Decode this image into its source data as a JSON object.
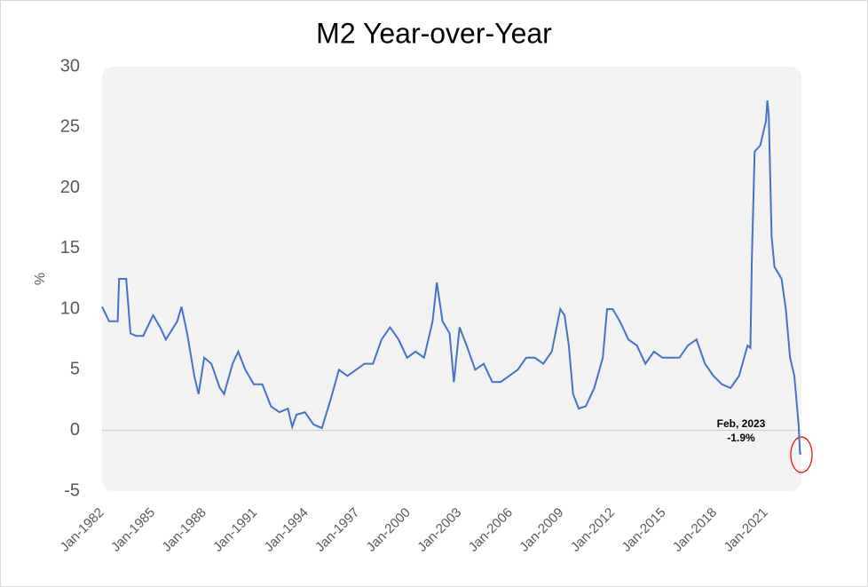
{
  "chart_data": {
    "type": "line",
    "title": "M2 Year-over-Year",
    "y_label": "%",
    "annotations": [
      "Feb, 2023",
      "-1.9%"
    ],
    "x": [
      "1982-01",
      "1982-06",
      "1982-12",
      "1983-01",
      "1983-06",
      "1983-09",
      "1984-01",
      "1984-06",
      "1985-01",
      "1985-06",
      "1985-10",
      "1986-06",
      "1986-09",
      "1987-01",
      "1987-06",
      "1987-09",
      "1988-01",
      "1988-06",
      "1988-12",
      "1989-03",
      "1989-09",
      "1990-01",
      "1990-06",
      "1990-12",
      "1991-06",
      "1991-12",
      "1992-06",
      "1992-12",
      "1993-03",
      "1993-06",
      "1993-12",
      "1994-06",
      "1994-12",
      "1995-06",
      "1995-12",
      "1996-06",
      "1996-12",
      "1997-06",
      "1997-12",
      "1998-06",
      "1998-12",
      "1999-06",
      "1999-12",
      "2000-06",
      "2000-12",
      "2001-06",
      "2001-09",
      "2002-01",
      "2002-06",
      "2002-09",
      "2003-01",
      "2003-06",
      "2003-12",
      "2004-06",
      "2004-12",
      "2005-06",
      "2005-12",
      "2006-06",
      "2006-12",
      "2007-06",
      "2007-12",
      "2008-06",
      "2008-12",
      "2009-03",
      "2009-06",
      "2009-09",
      "2010-01",
      "2010-06",
      "2010-12",
      "2011-06",
      "2011-09",
      "2012-01",
      "2012-06",
      "2012-12",
      "2013-06",
      "2013-12",
      "2014-06",
      "2014-12",
      "2015-06",
      "2015-12",
      "2016-06",
      "2016-12",
      "2017-06",
      "2017-12",
      "2018-06",
      "2018-12",
      "2019-06",
      "2019-12",
      "2020-02",
      "2020-03",
      "2020-05",
      "2020-09",
      "2021-01",
      "2021-02",
      "2021-03",
      "2021-05",
      "2021-07",
      "2021-12",
      "2022-03",
      "2022-06",
      "2022-09",
      "2022-12",
      "2023-01",
      "2023-02"
    ],
    "series": [
      {
        "name": "M2",
        "color": "#4472c4",
        "values": [
          10.2,
          9,
          9,
          12.5,
          12.5,
          8,
          7.8,
          7.8,
          9.5,
          8.5,
          7.5,
          9,
          10.2,
          8,
          4.5,
          3,
          6,
          5.5,
          3.5,
          3,
          5.5,
          6.5,
          5,
          3.8,
          3.8,
          2,
          1.5,
          1.8,
          0.3,
          1.3,
          1.5,
          0.5,
          0.2,
          2.5,
          5,
          4.5,
          5,
          5.5,
          5.5,
          7.5,
          8.5,
          7.5,
          6,
          6.5,
          6,
          9,
          12.2,
          9,
          8,
          4,
          8.5,
          7,
          5,
          5.5,
          4,
          4,
          4.5,
          5,
          6,
          6,
          5.5,
          6.5,
          10,
          9.5,
          7,
          3,
          1.8,
          2,
          3.5,
          6,
          10,
          10,
          9,
          7.5,
          7,
          5.5,
          6.5,
          6,
          6,
          6,
          7,
          7.5,
          5.5,
          4.5,
          3.8,
          3.5,
          4.5,
          7,
          6.8,
          14,
          23,
          23.5,
          25.5,
          27.2,
          26,
          16,
          13.5,
          12.5,
          10,
          6,
          4.5,
          0.5,
          -1.9,
          -1.9
        ]
      }
    ],
    "xlim": [
      "1982-01",
      "2023-02"
    ],
    "xticks": [
      {
        "value": "1982-01",
        "label": "Jan-1982"
      },
      {
        "value": "1985-01",
        "label": "Jan-1985"
      },
      {
        "value": "1988-01",
        "label": "Jan-1988"
      },
      {
        "value": "1991-01",
        "label": "Jan-1991"
      },
      {
        "value": "1994-01",
        "label": "Jan-1994"
      },
      {
        "value": "1997-01",
        "label": "Jan-1997"
      },
      {
        "value": "2000-01",
        "label": "Jan-2000"
      },
      {
        "value": "2003-01",
        "label": "Jan-2003"
      },
      {
        "value": "2006-01",
        "label": "Jan-2006"
      },
      {
        "value": "2009-01",
        "label": "Jan-2009"
      },
      {
        "value": "2012-01",
        "label": "Jan-2012"
      },
      {
        "value": "2015-01",
        "label": "Jan-2015"
      },
      {
        "value": "2018-01",
        "label": "Jan-2018"
      },
      {
        "value": "2021-01",
        "label": "Jan-2021"
      }
    ],
    "ylim": [
      -5,
      30
    ],
    "yticks": [
      -5,
      0,
      5,
      10,
      15,
      20,
      25,
      30
    ]
  }
}
